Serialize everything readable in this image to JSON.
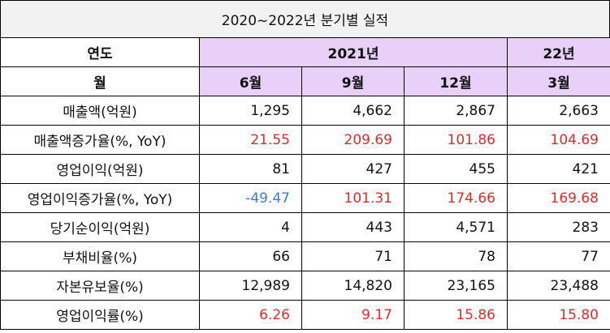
{
  "title": "2020~2022년 분기별 실적",
  "header": {
    "year_label": "연도",
    "year_2021": "2021년",
    "year_22": "22년",
    "month_label": "월",
    "months": [
      "6월",
      "9월",
      "12월",
      "3월"
    ]
  },
  "rows": [
    {
      "label": "매출액(억원)",
      "values": [
        "1,295",
        "4,662",
        "2,867",
        "2,663"
      ]
    },
    {
      "label": "매출액증가율(%, YoY)",
      "values": [
        "21.55",
        "209.69",
        "101.86",
        "104.69"
      ]
    },
    {
      "label": "영업이익(억원)",
      "values": [
        "81",
        "427",
        "455",
        "421"
      ]
    },
    {
      "label": "영업이익증가율(%, YoY)",
      "values": [
        "-49.47",
        "101.31",
        "174.66",
        "169.68"
      ]
    },
    {
      "label": "당기순이익(억원)",
      "values": [
        "4",
        "443",
        "4,571",
        "283"
      ]
    },
    {
      "label": "부채비율(%)",
      "values": [
        "66",
        "71",
        "78",
        "77"
      ]
    },
    {
      "label": "자본유보율(%)",
      "values": [
        "12,989",
        "14,820",
        "23,165",
        "23,488"
      ]
    },
    {
      "label": "영업이익률(%)",
      "values": [
        "6.26",
        "9.17",
        "15.86",
        "15.80"
      ]
    }
  ],
  "colors": {
    "header_fill": "#e8d0f8",
    "title_fill": "#f2f2f2",
    "positive_rate": "#e02a2a",
    "negative_rate": "#3a7bd5"
  }
}
